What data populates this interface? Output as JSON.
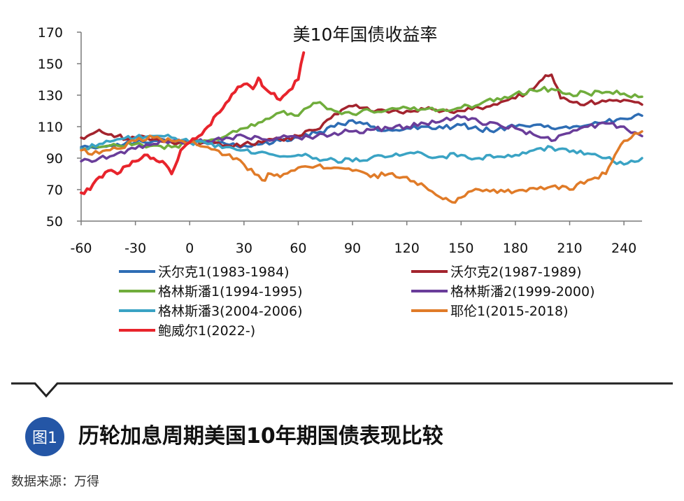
{
  "chart_data": {
    "type": "line",
    "title": "美10年国债收益率",
    "xlabel": "",
    "ylabel": "",
    "xlim": [
      -60,
      250
    ],
    "ylim": [
      50,
      170
    ],
    "x_ticks": [
      -60,
      -30,
      0,
      30,
      60,
      90,
      120,
      150,
      180,
      210,
      240
    ],
    "y_ticks": [
      50,
      70,
      90,
      110,
      130,
      150,
      170
    ],
    "grid": false,
    "legend_position": "bottom",
    "series": [
      {
        "name": "沃尔克1(1983-1984)",
        "color": "#2e6db4",
        "x": [
          -60,
          -50,
          -40,
          -30,
          -20,
          -10,
          0,
          10,
          20,
          30,
          40,
          50,
          60,
          70,
          80,
          90,
          100,
          110,
          120,
          130,
          140,
          150,
          160,
          170,
          180,
          190,
          200,
          210,
          220,
          230,
          240,
          250
        ],
        "y": [
          97,
          97,
          99,
          100,
          101,
          101,
          100,
          100,
          99,
          98,
          99,
          101,
          103,
          106,
          110,
          114,
          110,
          108,
          109,
          110,
          109,
          111,
          108,
          108,
          110,
          111,
          109,
          109,
          111,
          113,
          115,
          117
        ]
      },
      {
        "name": "沃尔克2(1987-1989)",
        "color": "#a3242e",
        "x": [
          -60,
          -55,
          -50,
          -45,
          -40,
          -35,
          -30,
          -20,
          -10,
          0,
          10,
          20,
          30,
          40,
          50,
          60,
          70,
          80,
          90,
          100,
          110,
          120,
          130,
          140,
          150,
          160,
          170,
          180,
          190,
          195,
          200,
          205,
          210,
          220,
          230,
          240,
          250
        ],
        "y": [
          103,
          105,
          108,
          105,
          104,
          102,
          103,
          102,
          100,
          100,
          99,
          98,
          99,
          100,
          102,
          104,
          108,
          118,
          123,
          120,
          119,
          120,
          121,
          120,
          120,
          122,
          124,
          128,
          134,
          140,
          143,
          128,
          126,
          125,
          126,
          127,
          124
        ]
      },
      {
        "name": "格林斯潘1(1994-1995)",
        "color": "#70ad3c",
        "x": [
          -60,
          -50,
          -40,
          -30,
          -20,
          -10,
          0,
          10,
          20,
          30,
          40,
          50,
          60,
          65,
          70,
          80,
          90,
          100,
          110,
          120,
          130,
          140,
          150,
          160,
          170,
          180,
          190,
          200,
          210,
          220,
          230,
          240,
          250
        ],
        "y": [
          96,
          97,
          98,
          99,
          98,
          97,
          100,
          101,
          104,
          109,
          113,
          119,
          117,
          122,
          125,
          120,
          118,
          120,
          121,
          122,
          121,
          121,
          122,
          124,
          128,
          131,
          133,
          134,
          131,
          131,
          132,
          131,
          129
        ]
      },
      {
        "name": "格林斯潘2(1999-2000)",
        "color": "#6a3d9a",
        "x": [
          -60,
          -50,
          -40,
          -30,
          -20,
          -10,
          0,
          10,
          20,
          30,
          40,
          50,
          60,
          70,
          80,
          90,
          100,
          110,
          120,
          130,
          140,
          150,
          160,
          170,
          180,
          190,
          200,
          210,
          220,
          230,
          240,
          250
        ],
        "y": [
          88,
          90,
          93,
          96,
          99,
          101,
          100,
          101,
          103,
          104,
          102,
          103,
          103,
          104,
          106,
          107,
          108,
          109,
          110,
          112,
          114,
          116,
          113,
          112,
          109,
          105,
          101,
          106,
          110,
          112,
          110,
          104
        ]
      },
      {
        "name": "格林斯潘3(2004-2006)",
        "color": "#3aa3c4",
        "x": [
          -60,
          -50,
          -40,
          -30,
          -20,
          -10,
          0,
          10,
          20,
          30,
          40,
          50,
          60,
          70,
          80,
          90,
          100,
          110,
          120,
          130,
          140,
          150,
          160,
          170,
          180,
          190,
          200,
          210,
          220,
          230,
          240,
          250
        ],
        "y": [
          96,
          99,
          102,
          103,
          104,
          103,
          100,
          99,
          97,
          95,
          94,
          91,
          92,
          90,
          89,
          88,
          90,
          91,
          93,
          92,
          91,
          92,
          90,
          91,
          92,
          95,
          97,
          94,
          93,
          90,
          86,
          90
        ]
      },
      {
        "name": "耶伦1(2015-2018)",
        "color": "#e07b28",
        "x": [
          -60,
          -50,
          -40,
          -30,
          -20,
          -10,
          0,
          10,
          20,
          30,
          40,
          45,
          50,
          60,
          70,
          80,
          90,
          100,
          110,
          120,
          130,
          140,
          145,
          150,
          160,
          170,
          180,
          190,
          200,
          210,
          220,
          230,
          235,
          240,
          250
        ],
        "y": [
          95,
          93,
          96,
          101,
          103,
          101,
          100,
          97,
          92,
          86,
          76,
          80,
          78,
          84,
          85,
          84,
          82,
          78,
          80,
          78,
          72,
          64,
          62,
          65,
          70,
          68,
          69,
          71,
          72,
          70,
          76,
          80,
          92,
          101,
          107
        ]
      },
      {
        "name": "鲍威尔1(2022-)",
        "color": "#e8242c",
        "x": [
          -60,
          -55,
          -50,
          -45,
          -40,
          -35,
          -30,
          -25,
          -20,
          -15,
          -10,
          -5,
          0,
          5,
          10,
          15,
          20,
          25,
          30,
          35,
          38,
          40,
          45,
          50,
          55,
          60,
          63
        ],
        "y": [
          68,
          70,
          78,
          82,
          80,
          85,
          88,
          92,
          90,
          88,
          80,
          95,
          100,
          104,
          110,
          118,
          125,
          132,
          137,
          134,
          141,
          136,
          131,
          127,
          133,
          140,
          157
        ]
      }
    ]
  },
  "caption": {
    "badge": "图1",
    "title": "历轮加息周期美国10年期国债表现比较"
  },
  "source": "数据来源：万得"
}
